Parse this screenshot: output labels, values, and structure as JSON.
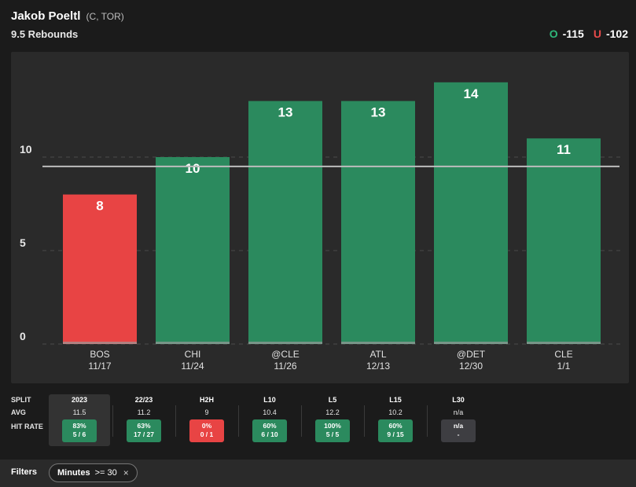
{
  "header": {
    "player_name": "Jakob Poeltl",
    "player_meta": "(C, TOR)",
    "prop_line": "9.5 Rebounds",
    "over_label": "O",
    "over_odds": "-115",
    "under_label": "U",
    "under_odds": "-102"
  },
  "chart_data": {
    "type": "bar",
    "title": "9.5 Rebounds",
    "categories": [
      "BOS",
      "CHI",
      "@CLE",
      "ATL",
      "@DET",
      "CLE"
    ],
    "dates": [
      "11/17",
      "11/24",
      "11/26",
      "12/13",
      "12/30",
      "1/1"
    ],
    "values": [
      8,
      10,
      13,
      13,
      14,
      11
    ],
    "threshold": 9.5,
    "ylim": [
      0,
      14
    ],
    "yticks": [
      0,
      5,
      10
    ],
    "xlabel": "",
    "ylabel": "",
    "colors": {
      "over": "#2b8a5e",
      "under": "#e84444",
      "line": "#bdbdbd"
    }
  },
  "splits": {
    "row_labels": [
      "SPLIT",
      "AVG",
      "HIT RATE"
    ],
    "columns": [
      {
        "name": "2023",
        "avg": "11.5",
        "pct": "83%",
        "frac": "5 / 6",
        "status": "green"
      },
      {
        "name": "22/23",
        "avg": "11.2",
        "pct": "63%",
        "frac": "17 / 27",
        "status": "green"
      },
      {
        "name": "H2H",
        "avg": "9",
        "pct": "0%",
        "frac": "0 / 1",
        "status": "red"
      },
      {
        "name": "L10",
        "avg": "10.4",
        "pct": "60%",
        "frac": "6 / 10",
        "status": "green"
      },
      {
        "name": "L5",
        "avg": "12.2",
        "pct": "100%",
        "frac": "5 / 5",
        "status": "green"
      },
      {
        "name": "L15",
        "avg": "10.2",
        "pct": "60%",
        "frac": "9 / 15",
        "status": "green"
      },
      {
        "name": "L30",
        "avg": "n/a",
        "pct": "n/a",
        "frac": "-",
        "status": "gray"
      }
    ]
  },
  "filters": {
    "label": "Filters",
    "chip_key": "Minutes",
    "chip_value": ">= 30",
    "chip_close": "×"
  }
}
